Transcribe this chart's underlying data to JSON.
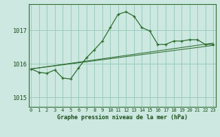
{
  "title": "Graphe pression niveau de la mer (hPa)",
  "bg_color": "#cce8e0",
  "grid_color": "#99ccbb",
  "line_color": "#2d6b2d",
  "xlim": [
    -0.3,
    23.3
  ],
  "ylim": [
    1014.72,
    1017.78
  ],
  "yticks": [
    1015,
    1016,
    1017
  ],
  "xtick_labels": [
    "0",
    "1",
    "2",
    "3",
    "4",
    "5",
    "6",
    "7",
    "8",
    "9",
    "10",
    "11",
    "12",
    "13",
    "14",
    "15",
    "16",
    "17",
    "18",
    "19",
    "20",
    "21",
    "22",
    "23"
  ],
  "series1": [
    1015.85,
    1015.75,
    1015.72,
    1015.82,
    1015.58,
    1015.55,
    1015.88,
    1016.18,
    1016.42,
    1016.68,
    1017.08,
    1017.48,
    1017.55,
    1017.42,
    1017.08,
    1016.98,
    1016.58,
    1016.58,
    1016.68,
    1016.68,
    1016.72,
    1016.72,
    1016.58,
    1016.58
  ],
  "series2_x": [
    0,
    23
  ],
  "series2_y": [
    1015.85,
    1016.62
  ],
  "series3_x": [
    0,
    23
  ],
  "series3_y": [
    1015.85,
    1016.55
  ]
}
